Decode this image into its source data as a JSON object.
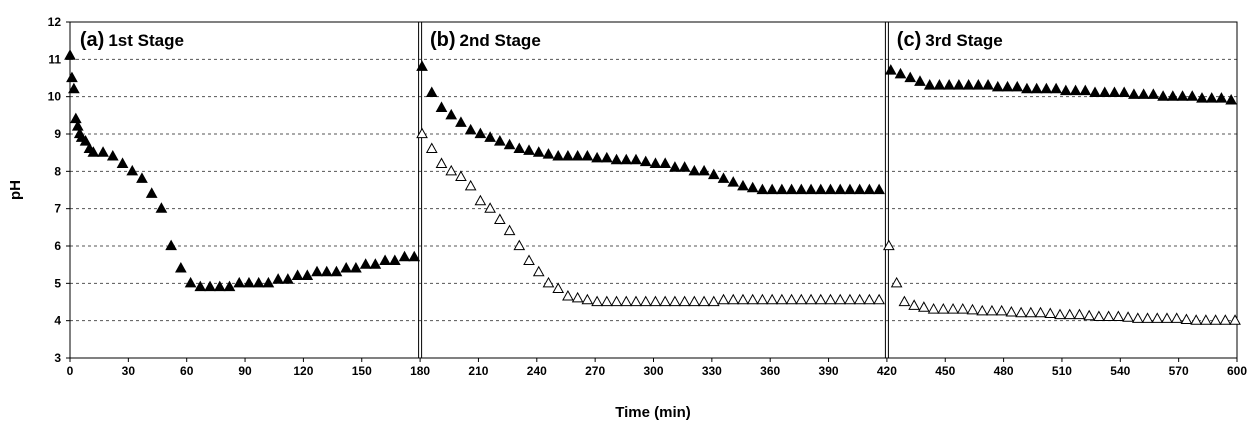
{
  "chart_data": {
    "type": "scatter",
    "xlabel": "Time (min)",
    "ylabel": "pH",
    "xlim": [
      0,
      600
    ],
    "ylim": [
      3,
      12
    ],
    "x_ticks": [
      0,
      30,
      60,
      90,
      120,
      150,
      180,
      210,
      240,
      270,
      300,
      330,
      360,
      390,
      420,
      450,
      480,
      510,
      540,
      570,
      600
    ],
    "y_ticks": [
      3,
      4,
      5,
      6,
      7,
      8,
      9,
      10,
      11,
      12
    ],
    "grid": "horizontal-dashed",
    "stage_boundaries": [
      180,
      420
    ],
    "annotations": [
      {
        "letter": "(a)",
        "text": "1st Stage",
        "x": 2
      },
      {
        "letter": "(b)",
        "text": "2nd Stage",
        "x": 182
      },
      {
        "letter": "(c)",
        "text": "3rd Stage",
        "x": 422
      }
    ],
    "series": [
      {
        "marker": "filled-triangle",
        "color": "#000000",
        "points": [
          [
            0,
            11.1
          ],
          [
            1,
            10.5
          ],
          [
            2,
            10.2
          ],
          [
            3,
            9.4
          ],
          [
            4,
            9.2
          ],
          [
            5,
            9.0
          ],
          [
            6,
            8.9
          ],
          [
            8,
            8.8
          ],
          [
            10,
            8.6
          ],
          [
            12,
            8.5
          ],
          [
            17,
            8.5
          ],
          [
            22,
            8.4
          ],
          [
            27,
            8.2
          ],
          [
            32,
            8.0
          ],
          [
            37,
            7.8
          ],
          [
            42,
            7.4
          ],
          [
            47,
            7.0
          ],
          [
            52,
            6.0
          ],
          [
            57,
            5.4
          ],
          [
            62,
            5.0
          ],
          [
            67,
            4.9
          ],
          [
            72,
            4.9
          ],
          [
            77,
            4.9
          ],
          [
            82,
            4.9
          ],
          [
            87,
            5.0
          ],
          [
            92,
            5.0
          ],
          [
            97,
            5.0
          ],
          [
            102,
            5.0
          ],
          [
            107,
            5.1
          ],
          [
            112,
            5.1
          ],
          [
            117,
            5.2
          ],
          [
            122,
            5.2
          ],
          [
            127,
            5.3
          ],
          [
            132,
            5.3
          ],
          [
            137,
            5.3
          ],
          [
            142,
            5.4
          ],
          [
            147,
            5.4
          ],
          [
            152,
            5.5
          ],
          [
            157,
            5.5
          ],
          [
            162,
            5.6
          ],
          [
            167,
            5.6
          ],
          [
            172,
            5.7
          ],
          [
            177,
            5.7
          ],
          [
            181,
            10.8
          ],
          [
            186,
            10.1
          ],
          [
            191,
            9.7
          ],
          [
            196,
            9.5
          ],
          [
            201,
            9.3
          ],
          [
            206,
            9.1
          ],
          [
            211,
            9.0
          ],
          [
            216,
            8.9
          ],
          [
            221,
            8.8
          ],
          [
            226,
            8.7
          ],
          [
            231,
            8.6
          ],
          [
            236,
            8.55
          ],
          [
            241,
            8.5
          ],
          [
            246,
            8.45
          ],
          [
            251,
            8.4
          ],
          [
            256,
            8.4
          ],
          [
            261,
            8.4
          ],
          [
            266,
            8.4
          ],
          [
            271,
            8.35
          ],
          [
            276,
            8.35
          ],
          [
            281,
            8.3
          ],
          [
            286,
            8.3
          ],
          [
            291,
            8.3
          ],
          [
            296,
            8.25
          ],
          [
            301,
            8.2
          ],
          [
            306,
            8.2
          ],
          [
            311,
            8.1
          ],
          [
            316,
            8.1
          ],
          [
            321,
            8.0
          ],
          [
            326,
            8.0
          ],
          [
            331,
            7.9
          ],
          [
            336,
            7.8
          ],
          [
            341,
            7.7
          ],
          [
            346,
            7.6
          ],
          [
            351,
            7.55
          ],
          [
            356,
            7.5
          ],
          [
            361,
            7.5
          ],
          [
            366,
            7.5
          ],
          [
            371,
            7.5
          ],
          [
            376,
            7.5
          ],
          [
            381,
            7.5
          ],
          [
            386,
            7.5
          ],
          [
            391,
            7.5
          ],
          [
            396,
            7.5
          ],
          [
            401,
            7.5
          ],
          [
            406,
            7.5
          ],
          [
            411,
            7.5
          ],
          [
            416,
            7.5
          ],
          [
            422,
            10.7
          ],
          [
            427,
            10.6
          ],
          [
            432,
            10.5
          ],
          [
            437,
            10.4
          ],
          [
            442,
            10.3
          ],
          [
            447,
            10.3
          ],
          [
            452,
            10.3
          ],
          [
            457,
            10.3
          ],
          [
            462,
            10.3
          ],
          [
            467,
            10.3
          ],
          [
            472,
            10.3
          ],
          [
            477,
            10.25
          ],
          [
            482,
            10.25
          ],
          [
            487,
            10.25
          ],
          [
            492,
            10.2
          ],
          [
            497,
            10.2
          ],
          [
            502,
            10.2
          ],
          [
            507,
            10.2
          ],
          [
            512,
            10.15
          ],
          [
            517,
            10.15
          ],
          [
            522,
            10.15
          ],
          [
            527,
            10.1
          ],
          [
            532,
            10.1
          ],
          [
            537,
            10.1
          ],
          [
            542,
            10.1
          ],
          [
            547,
            10.05
          ],
          [
            552,
            10.05
          ],
          [
            557,
            10.05
          ],
          [
            562,
            10.0
          ],
          [
            567,
            10.0
          ],
          [
            572,
            10.0
          ],
          [
            577,
            10.0
          ],
          [
            582,
            9.95
          ],
          [
            587,
            9.95
          ],
          [
            592,
            9.95
          ],
          [
            597,
            9.9
          ]
        ]
      },
      {
        "marker": "open-triangle",
        "color": "#000000",
        "points": [
          [
            181,
            9.0
          ],
          [
            186,
            8.6
          ],
          [
            191,
            8.2
          ],
          [
            196,
            8.0
          ],
          [
            201,
            7.85
          ],
          [
            206,
            7.6
          ],
          [
            211,
            7.2
          ],
          [
            216,
            7.0
          ],
          [
            221,
            6.7
          ],
          [
            226,
            6.4
          ],
          [
            231,
            6.0
          ],
          [
            236,
            5.6
          ],
          [
            241,
            5.3
          ],
          [
            246,
            5.0
          ],
          [
            251,
            4.85
          ],
          [
            256,
            4.65
          ],
          [
            261,
            4.6
          ],
          [
            266,
            4.55
          ],
          [
            271,
            4.5
          ],
          [
            276,
            4.5
          ],
          [
            281,
            4.5
          ],
          [
            286,
            4.5
          ],
          [
            291,
            4.5
          ],
          [
            296,
            4.5
          ],
          [
            301,
            4.5
          ],
          [
            306,
            4.5
          ],
          [
            311,
            4.5
          ],
          [
            316,
            4.5
          ],
          [
            321,
            4.5
          ],
          [
            326,
            4.5
          ],
          [
            331,
            4.5
          ],
          [
            336,
            4.55
          ],
          [
            341,
            4.55
          ],
          [
            346,
            4.55
          ],
          [
            351,
            4.55
          ],
          [
            356,
            4.55
          ],
          [
            361,
            4.55
          ],
          [
            366,
            4.55
          ],
          [
            371,
            4.55
          ],
          [
            376,
            4.55
          ],
          [
            381,
            4.55
          ],
          [
            386,
            4.55
          ],
          [
            391,
            4.55
          ],
          [
            396,
            4.55
          ],
          [
            401,
            4.55
          ],
          [
            406,
            4.55
          ],
          [
            411,
            4.55
          ],
          [
            416,
            4.55
          ],
          [
            421,
            6.0
          ],
          [
            425,
            5.0
          ],
          [
            429,
            4.5
          ],
          [
            434,
            4.4
          ],
          [
            439,
            4.35
          ],
          [
            444,
            4.3
          ],
          [
            449,
            4.3
          ],
          [
            454,
            4.3
          ],
          [
            459,
            4.3
          ],
          [
            464,
            4.28
          ],
          [
            469,
            4.25
          ],
          [
            474,
            4.25
          ],
          [
            479,
            4.25
          ],
          [
            484,
            4.22
          ],
          [
            489,
            4.2
          ],
          [
            494,
            4.2
          ],
          [
            499,
            4.2
          ],
          [
            504,
            4.18
          ],
          [
            509,
            4.15
          ],
          [
            514,
            4.15
          ],
          [
            519,
            4.15
          ],
          [
            524,
            4.12
          ],
          [
            529,
            4.1
          ],
          [
            534,
            4.1
          ],
          [
            539,
            4.1
          ],
          [
            544,
            4.08
          ],
          [
            549,
            4.05
          ],
          [
            554,
            4.05
          ],
          [
            559,
            4.05
          ],
          [
            564,
            4.05
          ],
          [
            569,
            4.05
          ],
          [
            574,
            4.02
          ],
          [
            579,
            4.0
          ],
          [
            584,
            4.0
          ],
          [
            589,
            4.0
          ],
          [
            594,
            4.0
          ],
          [
            599,
            4.0
          ]
        ]
      }
    ]
  }
}
